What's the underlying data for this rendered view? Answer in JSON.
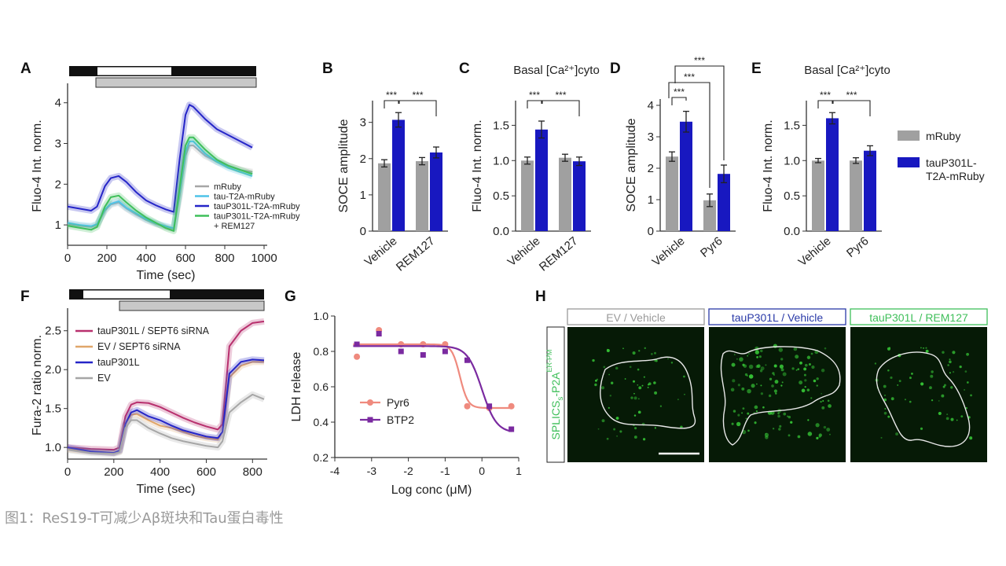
{
  "caption": "图1：ReS19-T可减少Aβ斑块和Tau蛋白毒性",
  "colors": {
    "mRuby": "#a6a6a6",
    "tau_t2a": "#4fc3e8",
    "tauP301L": "#2525c8",
    "rem127": "#3fbf5a",
    "ev_sept6": "#e0a66a",
    "tau_sept6": "#b8306e",
    "pyr6": "#ef8a7e",
    "btp2": "#7a2aa0",
    "gray_bar": "#a0a0a0",
    "blue_bar": "#1818c0",
    "micro_bg": "#061a06",
    "micro_dot": "#3ad23a"
  },
  "chart_data": [
    {
      "panel": "A",
      "type": "line",
      "xlabel": "Time (sec)",
      "ylabel": "Fluo-4 Int. norm.",
      "xlim": [
        0,
        1000
      ],
      "ylim": [
        0.5,
        4.4
      ],
      "xticks": [
        "0",
        "200",
        "400",
        "600",
        "800",
        "1000"
      ],
      "yticks": [
        "1",
        "2",
        "3",
        "4"
      ],
      "legend": [
        {
          "label": "mRuby",
          "color": "mRuby"
        },
        {
          "label": "tau-T2A-mRuby",
          "color": "tau_t2a"
        },
        {
          "label": "tauP301L-T2A-mRuby",
          "color": "tauP301L"
        },
        {
          "label": "tauP301L-T2A-mRuby",
          "color": "rem127"
        },
        {
          "label": "+ REM127",
          "color": ""
        }
      ],
      "x": [
        0,
        60,
        120,
        150,
        190,
        220,
        260,
        300,
        350,
        400,
        450,
        500,
        540,
        570,
        600,
        620,
        640,
        700,
        760,
        820,
        880,
        940
      ],
      "series": [
        {
          "name": "mRuby",
          "color": "mRuby",
          "values": [
            1.02,
            0.98,
            0.95,
            1.0,
            1.35,
            1.5,
            1.55,
            1.4,
            1.25,
            1.12,
            1.02,
            0.95,
            0.9,
            1.7,
            2.7,
            2.95,
            2.95,
            2.7,
            2.55,
            2.45,
            2.35,
            2.3
          ]
        },
        {
          "name": "tau-T2A-mRuby",
          "color": "tau_t2a",
          "values": [
            1.05,
            1.0,
            0.97,
            1.02,
            1.38,
            1.52,
            1.58,
            1.42,
            1.28,
            1.14,
            1.04,
            0.97,
            0.92,
            1.8,
            2.8,
            3.05,
            3.05,
            2.75,
            2.55,
            2.4,
            2.3,
            2.2
          ]
        },
        {
          "name": "tauP301L-T2A-mRuby",
          "color": "tauP301L",
          "values": [
            1.45,
            1.4,
            1.35,
            1.45,
            1.95,
            2.15,
            2.2,
            2.05,
            1.8,
            1.6,
            1.48,
            1.38,
            1.32,
            2.6,
            3.7,
            3.95,
            3.9,
            3.6,
            3.35,
            3.2,
            3.05,
            2.9
          ]
        },
        {
          "name": "tauP301L-T2A-mRuby + REM127",
          "color": "rem127",
          "values": [
            0.98,
            0.93,
            0.88,
            0.95,
            1.45,
            1.68,
            1.72,
            1.55,
            1.35,
            1.18,
            1.05,
            0.92,
            0.85,
            1.9,
            2.95,
            3.15,
            3.15,
            2.85,
            2.6,
            2.45,
            2.35,
            2.25
          ]
        }
      ]
    },
    {
      "panel": "B",
      "type": "bar",
      "ylabel": "SOCE amplitude",
      "ylim": [
        0,
        3.6
      ],
      "yticks": [
        "0",
        "1",
        "2",
        "3"
      ],
      "groups": [
        "Vehicle",
        "REM127"
      ],
      "series": [
        {
          "name": "mRuby",
          "values": [
            1.87,
            1.93
          ],
          "errors": [
            0.1,
            0.1
          ]
        },
        {
          "name": "tauP301L-T2A-mRuby",
          "values": [
            3.07,
            2.17
          ],
          "errors": [
            0.2,
            0.15
          ]
        }
      ],
      "significance": [
        "***",
        "***"
      ]
    },
    {
      "panel": "C",
      "type": "bar",
      "title": "Basal [Ca²⁺]cyto",
      "ylabel": "Fluo-4 Int. norm.",
      "ylim": [
        0,
        1.85
      ],
      "yticks": [
        "0.0",
        "0.5",
        "1.0",
        "1.5"
      ],
      "groups": [
        "Vehicle",
        "REM127"
      ],
      "series": [
        {
          "name": "mRuby",
          "values": [
            1.0,
            1.04
          ],
          "errors": [
            0.05,
            0.05
          ]
        },
        {
          "name": "tauP301L-T2A-mRuby",
          "values": [
            1.44,
            0.99
          ],
          "errors": [
            0.12,
            0.06
          ]
        }
      ],
      "significance": [
        "***",
        "***"
      ]
    },
    {
      "panel": "D",
      "type": "bar",
      "ylabel": "SOCE amplitude",
      "ylim": [
        0,
        4.2
      ],
      "yticks": [
        "0",
        "1",
        "2",
        "3",
        "4"
      ],
      "groups": [
        "Vehicle",
        "Pyr6"
      ],
      "series": [
        {
          "name": "mRuby",
          "values": [
            2.37,
            0.98
          ],
          "errors": [
            0.15,
            0.2
          ]
        },
        {
          "name": "tauP301L-T2A-mRuby",
          "values": [
            3.48,
            1.82
          ],
          "errors": [
            0.33,
            0.28
          ]
        }
      ],
      "significance": [
        "***",
        "***",
        "***"
      ]
    },
    {
      "panel": "E",
      "type": "bar",
      "title": "Basal [Ca²⁺]cyto",
      "ylabel": "Fluo-4 Int. norm.",
      "ylim": [
        0,
        1.85
      ],
      "yticks": [
        "0.0",
        "0.5",
        "1.0",
        "1.5"
      ],
      "groups": [
        "Vehicle",
        "Pyr6"
      ],
      "series": [
        {
          "name": "mRuby",
          "values": [
            1.0,
            1.0
          ],
          "errors": [
            0.03,
            0.04
          ]
        },
        {
          "name": "tauP301L-T2A-mRuby",
          "values": [
            1.6,
            1.14
          ],
          "errors": [
            0.08,
            0.07
          ]
        }
      ],
      "significance": [
        "***",
        "***"
      ],
      "legend": [
        {
          "label": "mRuby",
          "color": "gray_bar"
        },
        {
          "label": "tauP301L-",
          "color": "blue_bar"
        },
        {
          "label": "T2A-mRuby",
          "color": ""
        }
      ]
    },
    {
      "panel": "F",
      "type": "line",
      "xlabel": "Time (sec)",
      "ylabel": "Fura-2 ratio norm.",
      "xlim": [
        0,
        850
      ],
      "ylim": [
        0.85,
        2.75
      ],
      "xticks": [
        "0",
        "200",
        "400",
        "600",
        "800"
      ],
      "yticks": [
        "1.0",
        "1.5",
        "2.0",
        "2.5"
      ],
      "legend": [
        {
          "label": "tauP301L / SEPT6 siRNA",
          "color": "tau_sept6"
        },
        {
          "label": "EV / SEPT6 siRNA",
          "color": "ev_sept6"
        },
        {
          "label": "tauP301L",
          "color": "tauP301L"
        },
        {
          "label": "EV",
          "color": "mRuby"
        }
      ],
      "x": [
        0,
        100,
        200,
        225,
        250,
        275,
        300,
        350,
        400,
        450,
        500,
        550,
        600,
        650,
        670,
        700,
        750,
        800,
        850
      ],
      "series": [
        {
          "name": "tauP301L / SEPT6 siRNA",
          "color": "tau_sept6",
          "values": [
            1.0,
            0.98,
            0.97,
            1.0,
            1.4,
            1.55,
            1.58,
            1.57,
            1.52,
            1.45,
            1.38,
            1.32,
            1.27,
            1.23,
            1.3,
            2.3,
            2.5,
            2.6,
            2.62
          ]
        },
        {
          "name": "EV / SEPT6 siRNA",
          "color": "ev_sept6",
          "values": [
            0.98,
            0.95,
            0.93,
            0.95,
            1.3,
            1.42,
            1.43,
            1.35,
            1.28,
            1.25,
            1.2,
            1.15,
            1.12,
            1.1,
            1.2,
            1.9,
            2.05,
            2.1,
            2.1
          ]
        },
        {
          "name": "tauP301L",
          "color": "tauP301L",
          "values": [
            1.0,
            0.95,
            0.93,
            0.96,
            1.3,
            1.45,
            1.48,
            1.4,
            1.35,
            1.28,
            1.22,
            1.18,
            1.14,
            1.12,
            1.2,
            1.95,
            2.1,
            2.13,
            2.12
          ]
        },
        {
          "name": "EV",
          "color": "mRuby",
          "values": [
            0.97,
            0.93,
            0.92,
            0.94,
            1.25,
            1.35,
            1.35,
            1.25,
            1.18,
            1.12,
            1.08,
            1.05,
            1.02,
            1.0,
            1.08,
            1.45,
            1.58,
            1.68,
            1.62
          ]
        }
      ]
    },
    {
      "panel": "G",
      "type": "scatter",
      "xlabel": "Log conc (μM)",
      "ylabel": "LDH release",
      "xlim": [
        -4,
        1
      ],
      "ylim": [
        0.2,
        1.0
      ],
      "xticks": [
        "-4",
        "-3",
        "-2",
        "-1",
        "0",
        "1"
      ],
      "yticks": [
        "0.2",
        "0.4",
        "0.6",
        "0.8",
        "1.0"
      ],
      "legend": [
        {
          "label": "Pyr6",
          "color": "pyr6"
        },
        {
          "label": "BTP2",
          "color": "btp2"
        }
      ],
      "series": [
        {
          "name": "Pyr6",
          "color": "pyr6",
          "marker": "circle",
          "x": [
            -3.4,
            -2.8,
            -2.2,
            -1.6,
            -1.0,
            -0.4,
            0.2,
            0.8
          ],
          "y": [
            0.77,
            0.92,
            0.84,
            0.84,
            0.84,
            0.49,
            0.48,
            0.49
          ],
          "fit": {
            "top": 0.84,
            "bottom": 0.48,
            "ec50": -0.6,
            "hill": 4
          }
        },
        {
          "name": "BTP2",
          "color": "btp2",
          "marker": "square",
          "x": [
            -3.4,
            -2.8,
            -2.2,
            -1.6,
            -1.0,
            -0.4,
            0.2,
            0.8
          ],
          "y": [
            0.84,
            0.9,
            0.8,
            0.78,
            0.8,
            0.75,
            0.49,
            0.36
          ],
          "fit": {
            "top": 0.83,
            "bottom": 0.34,
            "ec50": 0.0,
            "hill": 2.2
          }
        }
      ]
    }
  ],
  "panel_h": {
    "side_label": "SPLICS",
    "side_label_sub": "s",
    "side_label_mid": "-P2A",
    "side_label_sup": "ER-PM",
    "columns": [
      {
        "title": "EV / Vehicle",
        "color": "#9a9a9a"
      },
      {
        "title": "tauP301L / Vehicle",
        "color": "#2a3aa8"
      },
      {
        "title": "tauP301L / REM127",
        "color": "#3fbf5a"
      }
    ]
  }
}
